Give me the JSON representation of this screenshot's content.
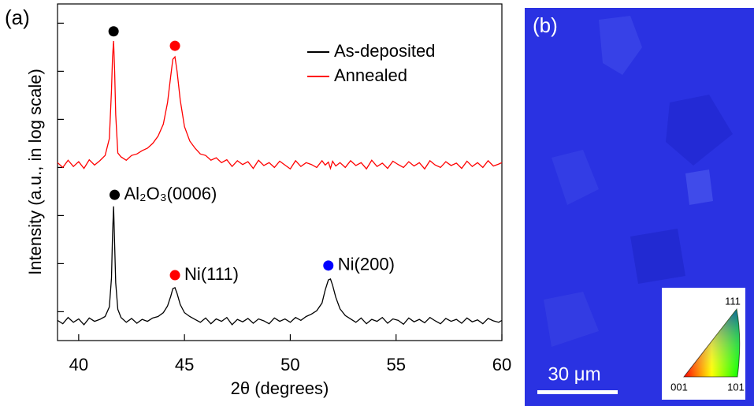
{
  "chart_data": {
    "type": "line",
    "panel_label": "(a)",
    "xlabel": "2θ (degrees)",
    "ylabel": "Intensity (a.u., in log scale)",
    "xlim": [
      39,
      60
    ],
    "xticks": [
      40,
      45,
      50,
      55,
      60
    ],
    "ylim": [
      0,
      7
    ],
    "yticks": [
      0.6,
      1.6,
      2.6,
      3.6,
      4.6,
      5.6,
      6.6
    ],
    "legend": "upper right",
    "x": [
      39,
      39.25,
      39.5,
      39.75,
      40,
      40.25,
      40.5,
      40.75,
      41,
      41.25,
      41.45,
      41.55,
      41.6,
      41.65,
      41.7,
      41.75,
      41.85,
      42,
      42.25,
      42.5,
      42.75,
      43,
      43.25,
      43.5,
      43.75,
      44,
      44.2,
      44.35,
      44.45,
      44.55,
      44.65,
      44.8,
      45,
      45.25,
      45.5,
      45.75,
      46,
      46.25,
      46.5,
      46.75,
      47,
      47.25,
      47.5,
      47.75,
      48,
      48.25,
      48.5,
      48.75,
      49,
      49.25,
      49.5,
      49.75,
      50,
      50.25,
      50.5,
      50.75,
      51,
      51.25,
      51.5,
      51.65,
      51.8,
      51.9,
      52,
      52.15,
      52.35,
      52.6,
      52.85,
      53.1,
      53.35,
      53.6,
      53.85,
      54.1,
      54.35,
      54.6,
      54.85,
      55.1,
      55.35,
      55.6,
      55.85,
      56.1,
      56.35,
      56.6,
      56.85,
      57.1,
      57.35,
      57.6,
      57.85,
      58.1,
      58.35,
      58.6,
      58.85,
      59.1,
      59.35,
      59.6,
      59.85,
      60
    ],
    "series": [
      {
        "name": "As-deposited",
        "color": "#000000",
        "values": [
          0.42,
          0.35,
          0.48,
          0.38,
          0.45,
          0.33,
          0.47,
          0.4,
          0.44,
          0.5,
          0.7,
          1.3,
          2.2,
          2.79,
          2.0,
          1.2,
          0.65,
          0.48,
          0.38,
          0.46,
          0.36,
          0.44,
          0.4,
          0.47,
          0.5,
          0.58,
          0.72,
          0.92,
          1.08,
          1.1,
          0.98,
          0.75,
          0.58,
          0.5,
          0.44,
          0.38,
          0.47,
          0.35,
          0.45,
          0.4,
          0.48,
          0.33,
          0.44,
          0.39,
          0.46,
          0.36,
          0.45,
          0.41,
          0.35,
          0.47,
          0.4,
          0.45,
          0.38,
          0.48,
          0.42,
          0.5,
          0.55,
          0.62,
          0.78,
          1.05,
          1.26,
          1.28,
          1.15,
          0.9,
          0.66,
          0.52,
          0.45,
          0.38,
          0.47,
          0.35,
          0.44,
          0.4,
          0.48,
          0.36,
          0.45,
          0.42,
          0.34,
          0.47,
          0.39,
          0.44,
          0.37,
          0.48,
          0.41,
          0.35,
          0.46,
          0.4,
          0.44,
          0.36,
          0.47,
          0.39,
          0.43,
          0.35,
          0.46,
          0.41,
          0.38,
          0.42
        ]
      },
      {
        "name": "Annealed",
        "color": "#ff0000",
        "values": [
          3.7,
          3.6,
          3.75,
          3.62,
          3.72,
          3.58,
          3.76,
          3.65,
          3.74,
          3.85,
          4.2,
          5.2,
          5.9,
          6.23,
          5.6,
          4.7,
          3.9,
          3.82,
          3.75,
          3.85,
          3.88,
          3.95,
          4.0,
          4.1,
          4.25,
          4.5,
          4.95,
          5.5,
          5.85,
          5.9,
          5.6,
          5.0,
          4.45,
          4.15,
          4.0,
          3.88,
          3.85,
          3.75,
          3.8,
          3.7,
          3.76,
          3.62,
          3.74,
          3.66,
          3.72,
          3.58,
          3.75,
          3.64,
          3.7,
          3.6,
          3.73,
          3.65,
          3.57,
          3.74,
          3.62,
          3.7,
          3.66,
          3.6,
          3.74,
          3.65,
          3.71,
          3.58,
          3.73,
          3.63,
          3.7,
          3.6,
          3.74,
          3.64,
          3.7,
          3.57,
          3.75,
          3.62,
          3.69,
          3.58,
          3.73,
          3.66,
          3.6,
          3.72,
          3.63,
          3.7,
          3.57,
          3.74,
          3.65,
          3.6,
          3.72,
          3.64,
          3.69,
          3.58,
          3.73,
          3.62,
          3.7,
          3.6,
          3.74,
          3.63,
          3.67,
          3.7
        ]
      }
    ],
    "annotations": [
      {
        "x": 41.65,
        "y": 6.43,
        "color": "#000000"
      },
      {
        "x": 44.55,
        "y": 6.13,
        "color": "#ff0000"
      },
      {
        "x": 41.7,
        "y": 3.03,
        "color": "#000000",
        "text": "Al₂O₃(0006)"
      },
      {
        "x": 44.55,
        "y": 1.36,
        "color": "#ff0000",
        "text": "Ni(111)"
      },
      {
        "x": 51.8,
        "y": 1.56,
        "color": "#0000ff",
        "text": "Ni(200)"
      }
    ]
  },
  "ebsd_map": {
    "panel_label": "(b)",
    "scale_bar": "30 μm",
    "ipf_labels": [
      "001",
      "101",
      "111"
    ]
  }
}
